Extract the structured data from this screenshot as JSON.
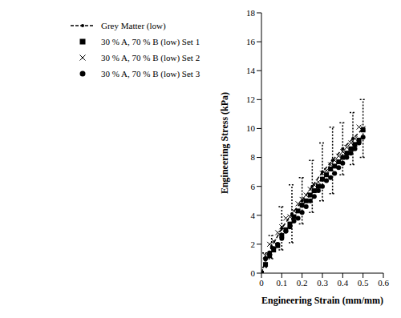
{
  "chart_data": {
    "type": "scatter",
    "x_label": "Engineering Strain (mm/mm)",
    "y_label": "Engineering Stress (kPa)",
    "xlim": [
      0,
      0.6
    ],
    "xticks": [
      0,
      0.1,
      0.2,
      0.3,
      0.4,
      0.5,
      0.6
    ],
    "ylim": [
      0,
      18
    ],
    "yticks": [
      0,
      2,
      4,
      6,
      8,
      10,
      12,
      14,
      16,
      18
    ],
    "grid": false,
    "legend": "upper left",
    "series": [
      {
        "name": "Grey Matter (low)",
        "type": "line",
        "color": "#000000",
        "marker": "circle",
        "line_style": "dashed",
        "x": [
          0,
          0.02,
          0.05,
          0.1,
          0.15,
          0.2,
          0.25,
          0.3,
          0.35,
          0.4,
          0.45,
          0.5
        ],
        "values": [
          0,
          0.9,
          1.8,
          3.1,
          4.1,
          5.0,
          6.0,
          7.0,
          7.8,
          8.6,
          9.3,
          10.0
        ],
        "error": [
          0,
          0.5,
          0.8,
          1.5,
          2.0,
          1.6,
          1.8,
          2.0,
          2.3,
          1.8,
          1.8,
          2.0
        ]
      },
      {
        "name": "30 % A, 70 % B (low) Set 1",
        "type": "scatter",
        "color": "#000000",
        "marker": "square",
        "x": [
          0,
          0.02,
          0.04,
          0.06,
          0.08,
          0.1,
          0.12,
          0.14,
          0.16,
          0.18,
          0.2,
          0.22,
          0.24,
          0.26,
          0.28,
          0.3,
          0.32,
          0.34,
          0.36,
          0.38,
          0.4,
          0.42,
          0.44,
          0.46,
          0.48,
          0.5
        ],
        "values": [
          0,
          0.6,
          1.2,
          1.6,
          1.9,
          2.6,
          3.0,
          3.4,
          3.9,
          4.3,
          4.7,
          5.0,
          5.4,
          5.7,
          6.0,
          6.5,
          6.8,
          7.2,
          7.4,
          7.7,
          8.0,
          8.3,
          8.6,
          8.9,
          9.2,
          9.9
        ]
      },
      {
        "name": "30 % A, 70 % B (low) Set 2",
        "type": "scatter",
        "color": "#000000",
        "marker": "x",
        "x": [
          0,
          0.02,
          0.04,
          0.06,
          0.08,
          0.1,
          0.12,
          0.14,
          0.16,
          0.18,
          0.2,
          0.22,
          0.24,
          0.26,
          0.28,
          0.3,
          0.32,
          0.34,
          0.36,
          0.38,
          0.4,
          0.42,
          0.44,
          0.46,
          0.48,
          0.5
        ],
        "values": [
          0,
          1.2,
          2.0,
          2.2,
          2.8,
          3.2,
          3.8,
          3.9,
          4.3,
          4.8,
          5.1,
          5.4,
          5.8,
          6.1,
          6.3,
          6.9,
          7.1,
          7.5,
          7.8,
          8.1,
          8.4,
          8.7,
          9.0,
          9.3,
          10.1,
          10.0
        ]
      },
      {
        "name": "30 % A, 70 % B (low) Set 3",
        "type": "scatter",
        "color": "#000000",
        "marker": "circle",
        "x": [
          0,
          0.02,
          0.04,
          0.06,
          0.08,
          0.1,
          0.12,
          0.14,
          0.16,
          0.18,
          0.2,
          0.22,
          0.24,
          0.26,
          0.28,
          0.3,
          0.32,
          0.34,
          0.36,
          0.38,
          0.4,
          0.42,
          0.44,
          0.46,
          0.48,
          0.5
        ],
        "values": [
          0,
          1.0,
          1.4,
          1.7,
          2.0,
          2.4,
          2.9,
          3.2,
          3.6,
          3.8,
          4.2,
          4.6,
          5.0,
          5.3,
          5.7,
          6.0,
          6.4,
          6.6,
          6.9,
          7.3,
          7.6,
          8.0,
          8.3,
          8.6,
          9.0,
          9.4
        ]
      }
    ]
  }
}
